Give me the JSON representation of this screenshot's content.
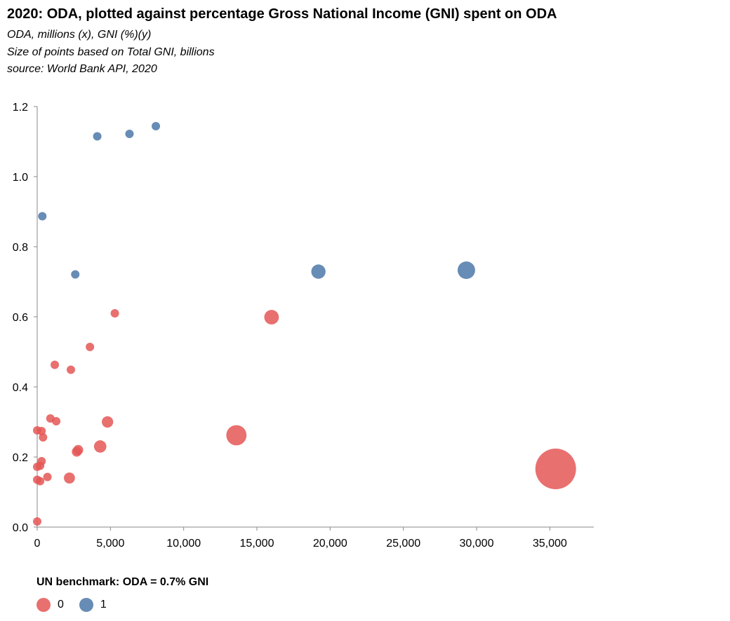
{
  "chart_data": {
    "type": "scatter",
    "title": "2020: ODA, plotted against percentage Gross National Income (GNI) spent on ODA",
    "subtitles": [
      "ODA, millions (x), GNI (%)(y)",
      "Size of points based on Total GNI, billions",
      "source: World Bank API, 2020"
    ],
    "xlim": [
      0,
      38000
    ],
    "ylim": [
      0,
      1.2
    ],
    "xticks": [
      0,
      5000,
      10000,
      15000,
      20000,
      25000,
      30000,
      35000
    ],
    "xtick_labels": [
      "0",
      "5,000",
      "10,000",
      "15,000",
      "20,000",
      "25,000",
      "30,000",
      "35,000"
    ],
    "yticks": [
      0,
      0.2,
      0.4,
      0.6,
      0.8,
      1.0,
      1.2
    ],
    "ytick_labels": [
      "0.0",
      "0.2",
      "0.4",
      "0.6",
      "0.8",
      "1.0",
      "1.2"
    ],
    "grid": false,
    "legend": {
      "title": "UN benchmark: ODA = 0.7% GNI",
      "placement": "bottom-left",
      "entries": [
        {
          "label": "0",
          "color": "#e45756"
        },
        {
          "label": "1",
          "color": "#4c78a8"
        }
      ]
    },
    "size_encoding": "Total GNI, billions",
    "points": [
      {
        "x": 4100,
        "y": 1.115,
        "gni": 450,
        "group": 1
      },
      {
        "x": 6300,
        "y": 1.122,
        "gni": 560,
        "group": 1
      },
      {
        "x": 8100,
        "y": 1.144,
        "gni": 700,
        "group": 1
      },
      {
        "x": 350,
        "y": 0.887,
        "gni": 40,
        "group": 1
      },
      {
        "x": 2600,
        "y": 0.721,
        "gni": 360,
        "group": 1
      },
      {
        "x": 19200,
        "y": 0.729,
        "gni": 2600,
        "group": 1
      },
      {
        "x": 29300,
        "y": 0.733,
        "gni": 3900,
        "group": 1
      },
      {
        "x": 5300,
        "y": 0.61,
        "gni": 870,
        "group": 0
      },
      {
        "x": 16000,
        "y": 0.599,
        "gni": 2700,
        "group": 0
      },
      {
        "x": 3600,
        "y": 0.514,
        "gni": 700,
        "group": 0
      },
      {
        "x": 1200,
        "y": 0.463,
        "gni": 260,
        "group": 0
      },
      {
        "x": 2300,
        "y": 0.449,
        "gni": 520,
        "group": 0
      },
      {
        "x": 900,
        "y": 0.31,
        "gni": 290,
        "group": 0
      },
      {
        "x": 1300,
        "y": 0.302,
        "gni": 430,
        "group": 0
      },
      {
        "x": 4800,
        "y": 0.3,
        "gni": 1650,
        "group": 0
      },
      {
        "x": 13600,
        "y": 0.262,
        "gni": 5200,
        "group": 0
      },
      {
        "x": 0,
        "y": 0.276,
        "gni": 40,
        "group": 0
      },
      {
        "x": 300,
        "y": 0.274,
        "gni": 110,
        "group": 0
      },
      {
        "x": 400,
        "y": 0.256,
        "gni": 160,
        "group": 0
      },
      {
        "x": 2800,
        "y": 0.22,
        "gni": 1270,
        "group": 0
      },
      {
        "x": 2700,
        "y": 0.215,
        "gni": 1240,
        "group": 0
      },
      {
        "x": 4300,
        "y": 0.23,
        "gni": 1950,
        "group": 0
      },
      {
        "x": 300,
        "y": 0.188,
        "gni": 140,
        "group": 0
      },
      {
        "x": 0,
        "y": 0.172,
        "gni": 65,
        "group": 0
      },
      {
        "x": 200,
        "y": 0.175,
        "gni": 100,
        "group": 0
      },
      {
        "x": 2200,
        "y": 0.14,
        "gni": 1550,
        "group": 0
      },
      {
        "x": 700,
        "y": 0.143,
        "gni": 380,
        "group": 0
      },
      {
        "x": 0,
        "y": 0.135,
        "gni": 200,
        "group": 0
      },
      {
        "x": 200,
        "y": 0.131,
        "gni": 300,
        "group": 0
      },
      {
        "x": 35400,
        "y": 0.166,
        "gni": 21000,
        "group": 0
      },
      {
        "x": 0,
        "y": 0.016,
        "gni": 240,
        "group": 0
      }
    ]
  }
}
